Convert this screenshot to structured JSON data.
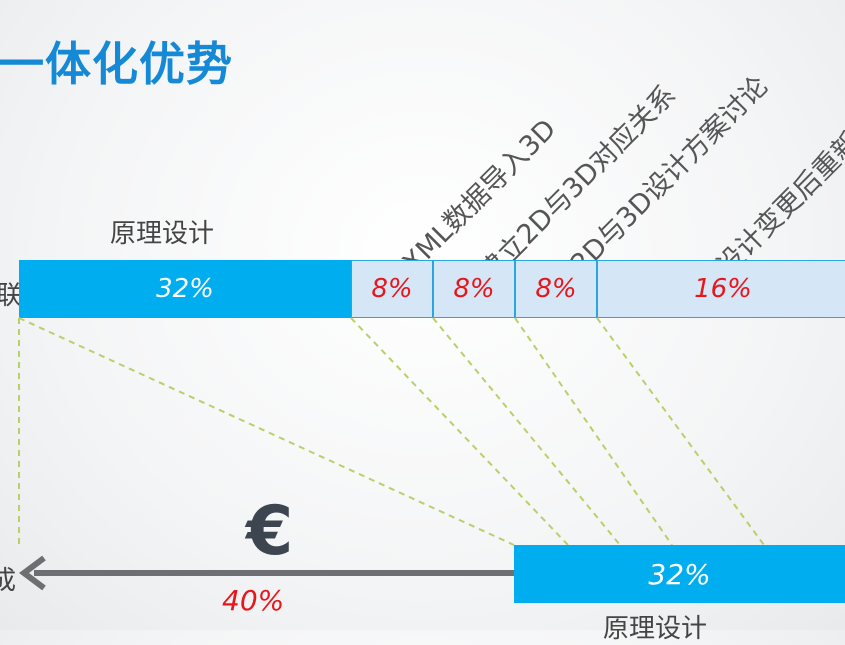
{
  "title": "一体化优势",
  "left_label_top": "联",
  "left_label_bottom": "成",
  "top_row_label": "原理设计",
  "segments": [
    {
      "label": "32%",
      "type": "main"
    },
    {
      "label": "8%",
      "type": "sub"
    },
    {
      "label": "8%",
      "type": "sub"
    },
    {
      "label": "8%",
      "type": "sub"
    },
    {
      "label": "16%",
      "type": "sub"
    }
  ],
  "step_labels": [
    "XML数据导入3D",
    "建立2D与3D对应关系",
    "2D与3D设计方案讨论",
    "设计变更后重新"
  ],
  "currency_icon": "euro-icon",
  "savings_percent": "40%",
  "bottom_box_value": "32%",
  "bottom_box_label": "原理设计",
  "colors": {
    "title": "#1589d6",
    "main_bar": "#00aeef",
    "sub_bar": "#d5e6f7",
    "sub_text": "#e8161b",
    "dashed": "#b9cf6a",
    "arrow": "#6d6f72"
  }
}
